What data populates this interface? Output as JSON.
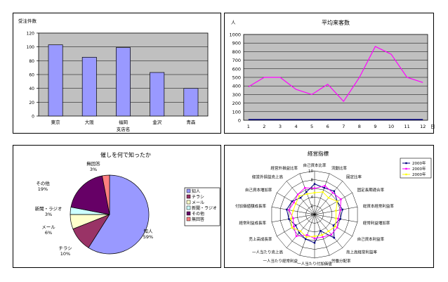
{
  "chart_data": [
    {
      "type": "bar",
      "ylabel": "受注件数",
      "xlabel": "支店名",
      "categories": [
        "東京",
        "大阪",
        "福岡",
        "金沢",
        "青森"
      ],
      "values": [
        103,
        85,
        99,
        63,
        40
      ],
      "ylim": [
        0,
        120
      ],
      "yticks": [
        "0",
        "20",
        "40",
        "60",
        "80",
        "100",
        "120"
      ],
      "grid": true,
      "bar_color": "#9999ff",
      "plot_bg": "#c0c0c0"
    },
    {
      "type": "line",
      "title": "平均来客数",
      "yunit": "人",
      "xunit": "日",
      "x": [
        "1",
        "2",
        "3",
        "4",
        "5",
        "6",
        "7",
        "8",
        "9",
        "10",
        "11",
        "12"
      ],
      "series": [
        {
          "values": [
            390,
            500,
            500,
            360,
            300,
            420,
            220,
            500,
            860,
            770,
            500,
            440
          ]
        },
        {
          "values": [
            0,
            0,
            0,
            0,
            0,
            0,
            0,
            0,
            0,
            0,
            0,
            0
          ]
        }
      ],
      "ylim": [
        0,
        1000
      ],
      "yticks": [
        "0",
        "100",
        "200",
        "300",
        "400",
        "500",
        "600",
        "700",
        "800",
        "900",
        "1000"
      ],
      "grid": true,
      "line_color": "#ff00ff",
      "plot_bg": "#c0c0c0"
    },
    {
      "type": "pie",
      "title": "催しを何で知ったか",
      "slices": [
        {
          "label": "知人",
          "value": 59,
          "pct": "59%",
          "color": "#9999ff"
        },
        {
          "label": "チラシ",
          "value": 10,
          "pct": "10%",
          "color": "#993366"
        },
        {
          "label": "メール",
          "value": 6,
          "pct": "6%",
          "color": "#ffffcc"
        },
        {
          "label": "新聞・ラジオ",
          "value": 3,
          "pct": "3%",
          "color": "#ccffff"
        },
        {
          "label": "その他",
          "value": 19,
          "pct": "19%",
          "color": "#660066"
        },
        {
          "label": "無回答",
          "value": 3,
          "pct": "3%",
          "color": "#ff8080"
        }
      ],
      "legend": [
        "知人",
        "チラシ",
        "メール",
        "新聞・ラジオ",
        "その他",
        "無回答"
      ],
      "legend_position": "right"
    },
    {
      "type": "radar",
      "title": "経営指標",
      "axes": [
        "自己資本比率",
        "流動比率",
        "固定比率",
        "固定長期適合率",
        "総資本経常利益率",
        "経常利益増加率",
        "自己資本利益率",
        "売上高経常利益率",
        "労働分配率",
        "一人当たり付加価値",
        "一人当たり経常利益",
        "一人当たり売上高",
        "売上高成長率",
        "経常利益成長率",
        "付加価値額成長率",
        "自己資本増加率",
        "経営外損益売上高",
        "経営外損益比率"
      ],
      "rlim": [
        0,
        10
      ],
      "rticks": [
        "0",
        "2",
        "4",
        "6",
        "8",
        "10"
      ],
      "series": [
        {
          "name": "2000年",
          "color": "#000080",
          "values": [
            7,
            6.5,
            7,
            6,
            6.5,
            6,
            5,
            7,
            4,
            6.5,
            6,
            5.5,
            5,
            6,
            6.5,
            6,
            5,
            5.5
          ]
        },
        {
          "name": "2000年",
          "color": "#ff00ff",
          "values": [
            6,
            7,
            6.5,
            7,
            6,
            5.5,
            6,
            6,
            5.5,
            5.5,
            5,
            6.5,
            5.5,
            5,
            6,
            5.5,
            6,
            6.5
          ]
        },
        {
          "name": "2000年",
          "color": "#ffff00",
          "values": [
            5,
            5.5,
            5,
            6,
            5,
            5,
            5.5,
            5,
            5,
            5,
            5.5,
            5,
            6,
            5.5,
            5,
            5,
            5.5,
            5
          ]
        }
      ],
      "legend_position": "top-right"
    }
  ]
}
